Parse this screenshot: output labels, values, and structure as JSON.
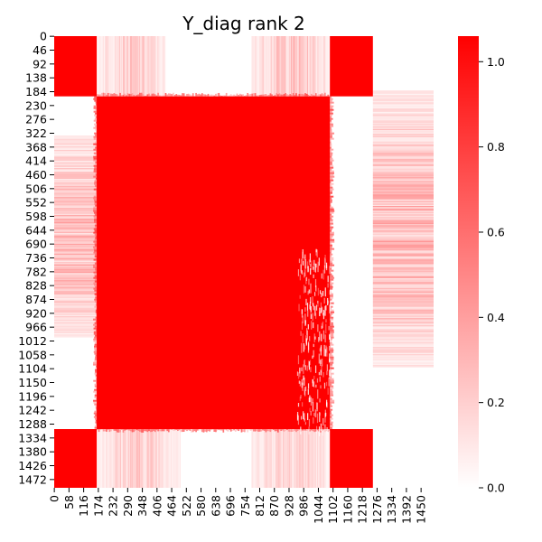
{
  "chart_data": {
    "type": "heatmap",
    "title": "Y_diag rank 2",
    "xlabel": "",
    "ylabel": "",
    "n": 1500,
    "x_tick_labels": [
      "0",
      "58",
      "116",
      "174",
      "232",
      "290",
      "348",
      "406",
      "464",
      "522",
      "580",
      "638",
      "696",
      "754",
      "812",
      "870",
      "928",
      "986",
      "1044",
      "1102",
      "1160",
      "1218",
      "1276",
      "1334",
      "1392",
      "1450"
    ],
    "y_tick_labels": [
      "0",
      "46",
      "92",
      "138",
      "184",
      "230",
      "276",
      "322",
      "368",
      "414",
      "460",
      "506",
      "552",
      "598",
      "644",
      "690",
      "736",
      "782",
      "828",
      "874",
      "920",
      "966",
      "1012",
      "1058",
      "1104",
      "1150",
      "1196",
      "1242",
      "1288",
      "1334",
      "1380",
      "1426",
      "1472"
    ],
    "blocks": [
      {
        "rows": [
          0,
          200
        ],
        "cols": [
          0,
          168
        ],
        "value": 1.0
      },
      {
        "rows": [
          0,
          200
        ],
        "cols": [
          1090,
          1260
        ],
        "value": 1.0
      },
      {
        "rows": [
          1305,
          1500
        ],
        "cols": [
          0,
          168
        ],
        "value": 1.0
      },
      {
        "rows": [
          1305,
          1500
        ],
        "cols": [
          1090,
          1260
        ],
        "value": 1.0
      },
      {
        "rows": [
          200,
          1305
        ],
        "cols": [
          168,
          1090
        ],
        "value": 1.0
      }
    ],
    "colorbar": {
      "min": 0.0,
      "max": 1.06,
      "ticks": [
        "0.0",
        "0.2",
        "0.4",
        "0.6",
        "0.8",
        "1.0"
      ],
      "tick_values": [
        0.0,
        0.2,
        0.4,
        0.6,
        0.8,
        1.0
      ],
      "color_low": "#ffffff",
      "color_high": "#ff0000"
    }
  }
}
